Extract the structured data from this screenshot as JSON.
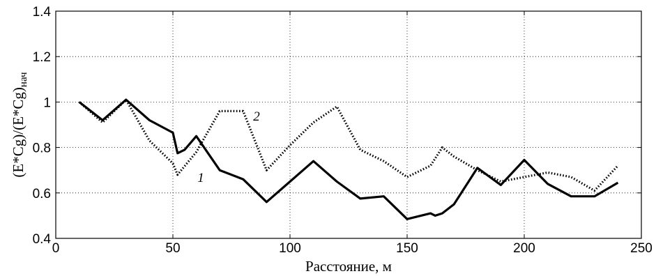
{
  "chart_data": {
    "type": "line",
    "xlabel": "Расстояние, м",
    "ylabel": "(E*Cg)/(E*Cg)нач",
    "xlim": [
      0,
      250
    ],
    "ylim": [
      0.4,
      1.4
    ],
    "xticks": [
      "0",
      "50",
      "100",
      "150",
      "200",
      "250"
    ],
    "yticks": [
      "0.4",
      "0.6",
      "0.8",
      "1",
      "1.2",
      "1.4"
    ],
    "grid": true,
    "series": [
      {
        "name": "1",
        "style": "solid",
        "color": "#000000",
        "x": [
          10,
          20,
          30,
          40,
          50,
          52,
          55,
          60,
          70,
          80,
          90,
          100,
          110,
          120,
          130,
          140,
          150,
          160,
          162,
          165,
          170,
          180,
          190,
          200,
          210,
          220,
          230,
          240
        ],
        "y": [
          1.0,
          0.92,
          1.01,
          0.92,
          0.865,
          0.775,
          0.79,
          0.85,
          0.7,
          0.66,
          0.56,
          0.65,
          0.74,
          0.65,
          0.575,
          0.585,
          0.485,
          0.51,
          0.5,
          0.51,
          0.55,
          0.71,
          0.635,
          0.745,
          0.64,
          0.585,
          0.585,
          0.645
        ]
      },
      {
        "name": "2",
        "style": "dotted",
        "color": "#000000",
        "x": [
          10,
          20,
          30,
          40,
          50,
          52,
          60,
          70,
          80,
          90,
          100,
          110,
          120,
          130,
          140,
          150,
          160,
          165,
          170,
          180,
          190,
          200,
          210,
          220,
          230,
          240
        ],
        "y": [
          1.0,
          0.91,
          1.01,
          0.83,
          0.73,
          0.68,
          0.78,
          0.96,
          0.96,
          0.7,
          0.81,
          0.91,
          0.98,
          0.79,
          0.74,
          0.67,
          0.72,
          0.8,
          0.76,
          0.7,
          0.65,
          0.67,
          0.69,
          0.67,
          0.61,
          0.72
        ]
      }
    ]
  }
}
